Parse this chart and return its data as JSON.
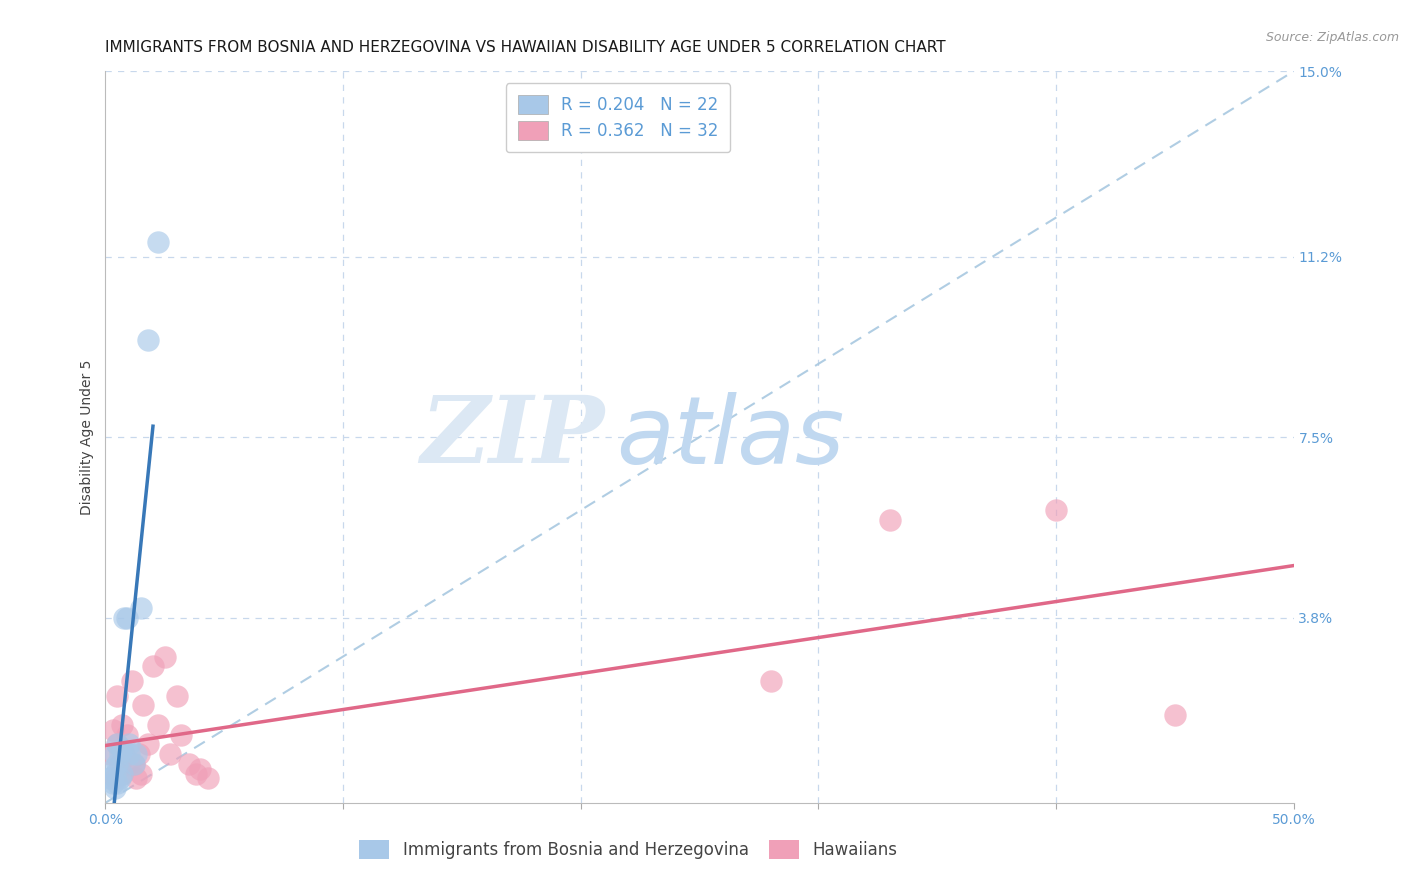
{
  "title": "IMMIGRANTS FROM BOSNIA AND HERZEGOVINA VS HAWAIIAN DISABILITY AGE UNDER 5 CORRELATION CHART",
  "source": "Source: ZipAtlas.com",
  "xlabel": "",
  "ylabel": "Disability Age Under 5",
  "legend_label_1": "Immigrants from Bosnia and Herzegovina",
  "legend_label_2": "Hawaiians",
  "R1": 0.204,
  "N1": 22,
  "R2": 0.362,
  "N2": 32,
  "color_blue": "#a8c8e8",
  "color_pink": "#f0a0b8",
  "color_blue_line": "#3878b8",
  "color_pink_line": "#e06888",
  "color_dashed": "#a8c8e0",
  "color_axis_labels": "#5b9bd5",
  "xlim": [
    0.0,
    0.5
  ],
  "ylim": [
    0.0,
    0.15
  ],
  "xtick_vals": [
    0.0,
    0.1,
    0.2,
    0.3,
    0.4,
    0.5
  ],
  "xtick_labels": [
    "0.0%",
    "",
    "",
    "",
    "",
    "50.0%"
  ],
  "yticks_right": [
    0.0,
    0.038,
    0.075,
    0.112,
    0.15
  ],
  "ytick_labels_right": [
    "",
    "3.8%",
    "7.5%",
    "11.2%",
    "15.0%"
  ],
  "blue_x": [
    0.002,
    0.003,
    0.003,
    0.004,
    0.004,
    0.004,
    0.005,
    0.005,
    0.005,
    0.006,
    0.006,
    0.007,
    0.007,
    0.008,
    0.009,
    0.01,
    0.01,
    0.012,
    0.013,
    0.015,
    0.018,
    0.022
  ],
  "blue_y": [
    0.005,
    0.004,
    0.007,
    0.003,
    0.006,
    0.01,
    0.004,
    0.008,
    0.012,
    0.005,
    0.01,
    0.006,
    0.011,
    0.038,
    0.038,
    0.01,
    0.012,
    0.008,
    0.01,
    0.04,
    0.095,
    0.115
  ],
  "pink_x": [
    0.002,
    0.003,
    0.004,
    0.005,
    0.005,
    0.006,
    0.007,
    0.007,
    0.008,
    0.009,
    0.01,
    0.011,
    0.012,
    0.013,
    0.014,
    0.015,
    0.016,
    0.018,
    0.02,
    0.022,
    0.025,
    0.027,
    0.03,
    0.032,
    0.035,
    0.038,
    0.04,
    0.043,
    0.28,
    0.33,
    0.4,
    0.45
  ],
  "pink_y": [
    0.01,
    0.015,
    0.005,
    0.012,
    0.022,
    0.008,
    0.006,
    0.016,
    0.01,
    0.014,
    0.008,
    0.025,
    0.008,
    0.005,
    0.01,
    0.006,
    0.02,
    0.012,
    0.028,
    0.016,
    0.03,
    0.01,
    0.022,
    0.014,
    0.008,
    0.006,
    0.007,
    0.005,
    0.025,
    0.058,
    0.06,
    0.018
  ],
  "blue_line_x_start": 0.001,
  "blue_line_x_end": 0.02,
  "pink_line_x_start": 0.0,
  "pink_line_x_end": 0.5,
  "watermark_zip": "ZIP",
  "watermark_atlas": "atlas",
  "background_color": "#ffffff",
  "grid_color": "#c8d8ec",
  "title_fontsize": 11,
  "ylabel_fontsize": 10,
  "tick_fontsize": 10,
  "legend_fontsize": 12
}
